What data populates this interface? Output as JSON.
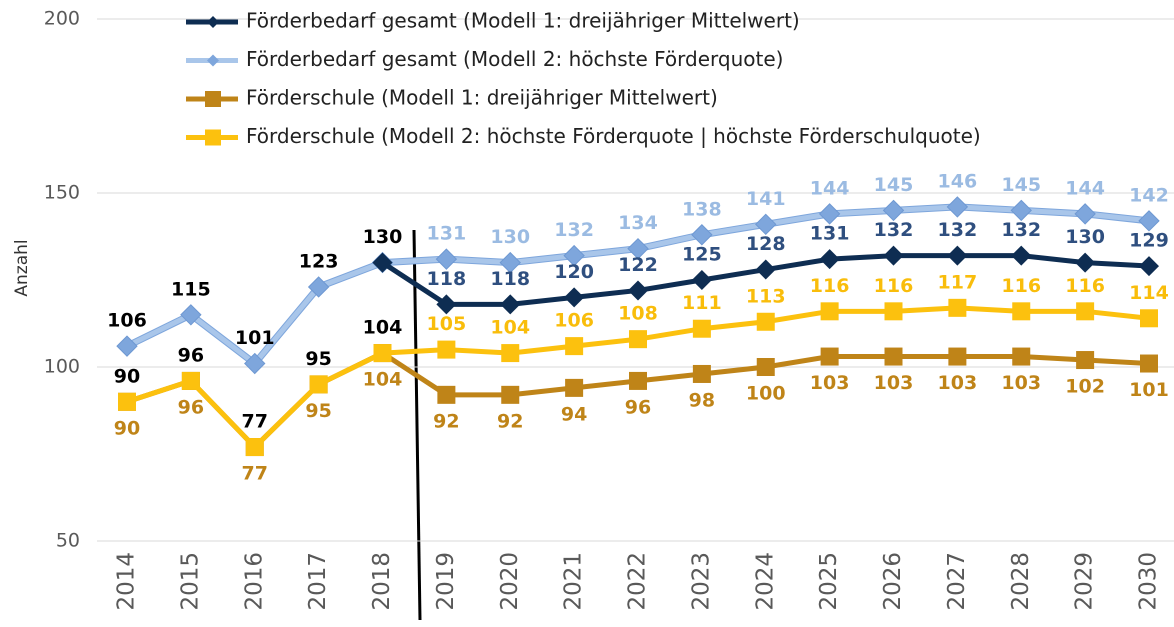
{
  "chart_data": {
    "type": "line",
    "y_label": "Anzahl",
    "categories": [
      "2014",
      "2015",
      "2016",
      "2017",
      "2018",
      "2019",
      "2020",
      "2021",
      "2022",
      "2023",
      "2024",
      "2025",
      "2026",
      "2027",
      "2028",
      "2029",
      "2030"
    ],
    "ylim": [
      50,
      200
    ],
    "yticks": [
      50,
      100,
      150,
      200
    ],
    "grid": true,
    "history_end": "2018",
    "history_label_color": "#000000",
    "series": [
      {
        "name": "Förderbedarf gesamt (Modell 1: dreijähriger Mittelwert)",
        "color": "#0e2d52",
        "marker": "diamond",
        "label_color": "#2f4f7f",
        "label_side": "above",
        "values": [
          106,
          115,
          101,
          123,
          130,
          118,
          118,
          120,
          122,
          125,
          128,
          131,
          132,
          132,
          132,
          130,
          129
        ],
        "value_labels": [
          null,
          null,
          null,
          null,
          null,
          "118",
          "118",
          "120",
          "122",
          "125",
          "128",
          "131",
          "132",
          "132",
          "132",
          "130",
          "129"
        ]
      },
      {
        "name": "Förderbedarf gesamt (Modell 2: höchste Förderquote)",
        "color": "#a9c6ea",
        "marker": "diamond",
        "label_color": "#9bbbe2",
        "label_side": "above",
        "values": [
          106,
          115,
          101,
          123,
          130,
          131,
          130,
          132,
          134,
          138,
          141,
          144,
          145,
          146,
          145,
          144,
          142
        ]
      },
      {
        "name": "Förderschule (Modell 1: dreijähriger Mittelwert)",
        "color": "#bf8418",
        "marker": "square",
        "label_color": "#bf8418",
        "label_side": "below",
        "values": [
          90,
          96,
          77,
          95,
          104,
          92,
          92,
          94,
          96,
          98,
          100,
          103,
          103,
          103,
          103,
          102,
          101
        ]
      },
      {
        "name": "Förderschule (Modell 2: höchste Förderquote | höchste Förderschulquote)",
        "color": "#fcc10e",
        "marker": "square",
        "label_color": "#f9bd0b",
        "label_side": "above",
        "values": [
          90,
          96,
          77,
          95,
          104,
          105,
          104,
          106,
          108,
          111,
          113,
          116,
          116,
          117,
          116,
          116,
          114
        ]
      }
    ]
  }
}
